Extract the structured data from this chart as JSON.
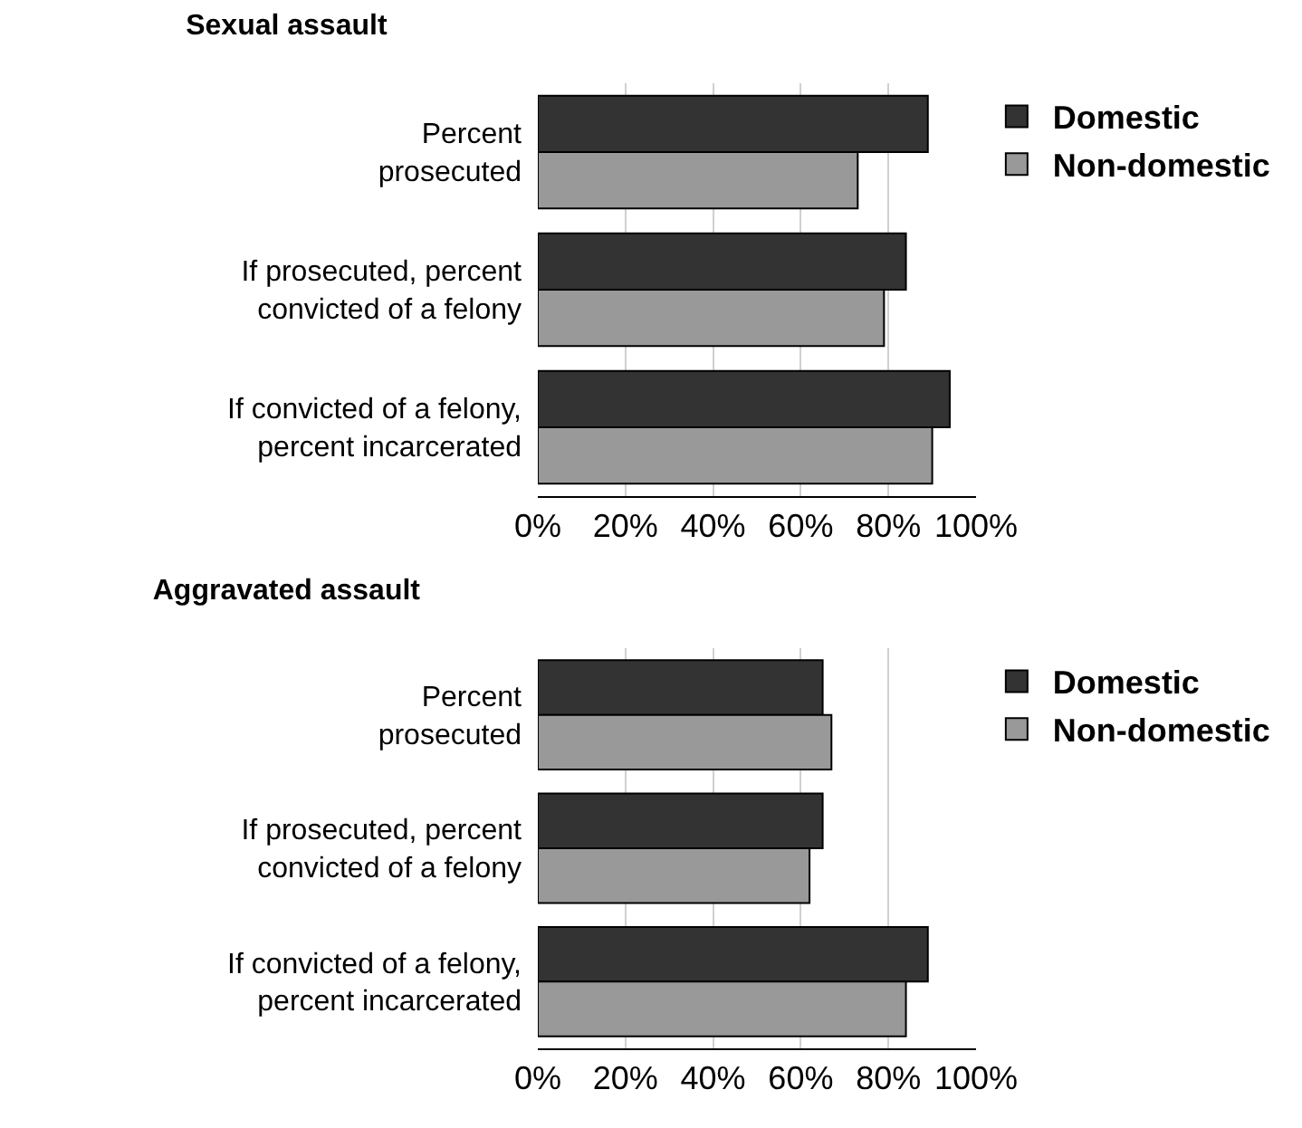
{
  "chart_data": [
    {
      "type": "bar",
      "orientation": "horizontal",
      "title": "Sexual assault",
      "categories": [
        "Percent\nprosecuted",
        "If prosecuted, percent\nconvicted of a felony",
        "If convicted of a felony,\npercent incarcerated"
      ],
      "series": [
        {
          "name": "Domestic",
          "color": "#333333",
          "values": [
            89,
            84,
            94
          ]
        },
        {
          "name": "Non-domestic",
          "color": "#999999",
          "values": [
            73,
            79,
            90
          ]
        }
      ],
      "xlim": [
        0,
        100
      ],
      "xticks": [
        {
          "value": 0,
          "label": "0%"
        },
        {
          "value": 20,
          "label": "20%"
        },
        {
          "value": 40,
          "label": "40%"
        },
        {
          "value": 60,
          "label": "60%"
        },
        {
          "value": 80,
          "label": "80%"
        },
        {
          "value": 100,
          "label": "100%"
        }
      ],
      "grid": "x",
      "legend": "top right"
    },
    {
      "type": "bar",
      "orientation": "horizontal",
      "title": "Aggravated assault",
      "categories": [
        "Percent\nprosecuted",
        "If prosecuted, percent\nconvicted of a felony",
        "If convicted of a felony,\npercent incarcerated"
      ],
      "series": [
        {
          "name": "Domestic",
          "color": "#333333",
          "values": [
            65,
            65,
            89
          ]
        },
        {
          "name": "Non-domestic",
          "color": "#999999",
          "values": [
            67,
            62,
            84
          ]
        }
      ],
      "xlim": [
        0,
        100
      ],
      "xticks": [
        {
          "value": 0,
          "label": "0%"
        },
        {
          "value": 20,
          "label": "20%"
        },
        {
          "value": 40,
          "label": "40%"
        },
        {
          "value": 60,
          "label": "60%"
        },
        {
          "value": 80,
          "label": "80%"
        },
        {
          "value": 100,
          "label": "100%"
        }
      ],
      "grid": "x",
      "legend": "top right"
    }
  ]
}
